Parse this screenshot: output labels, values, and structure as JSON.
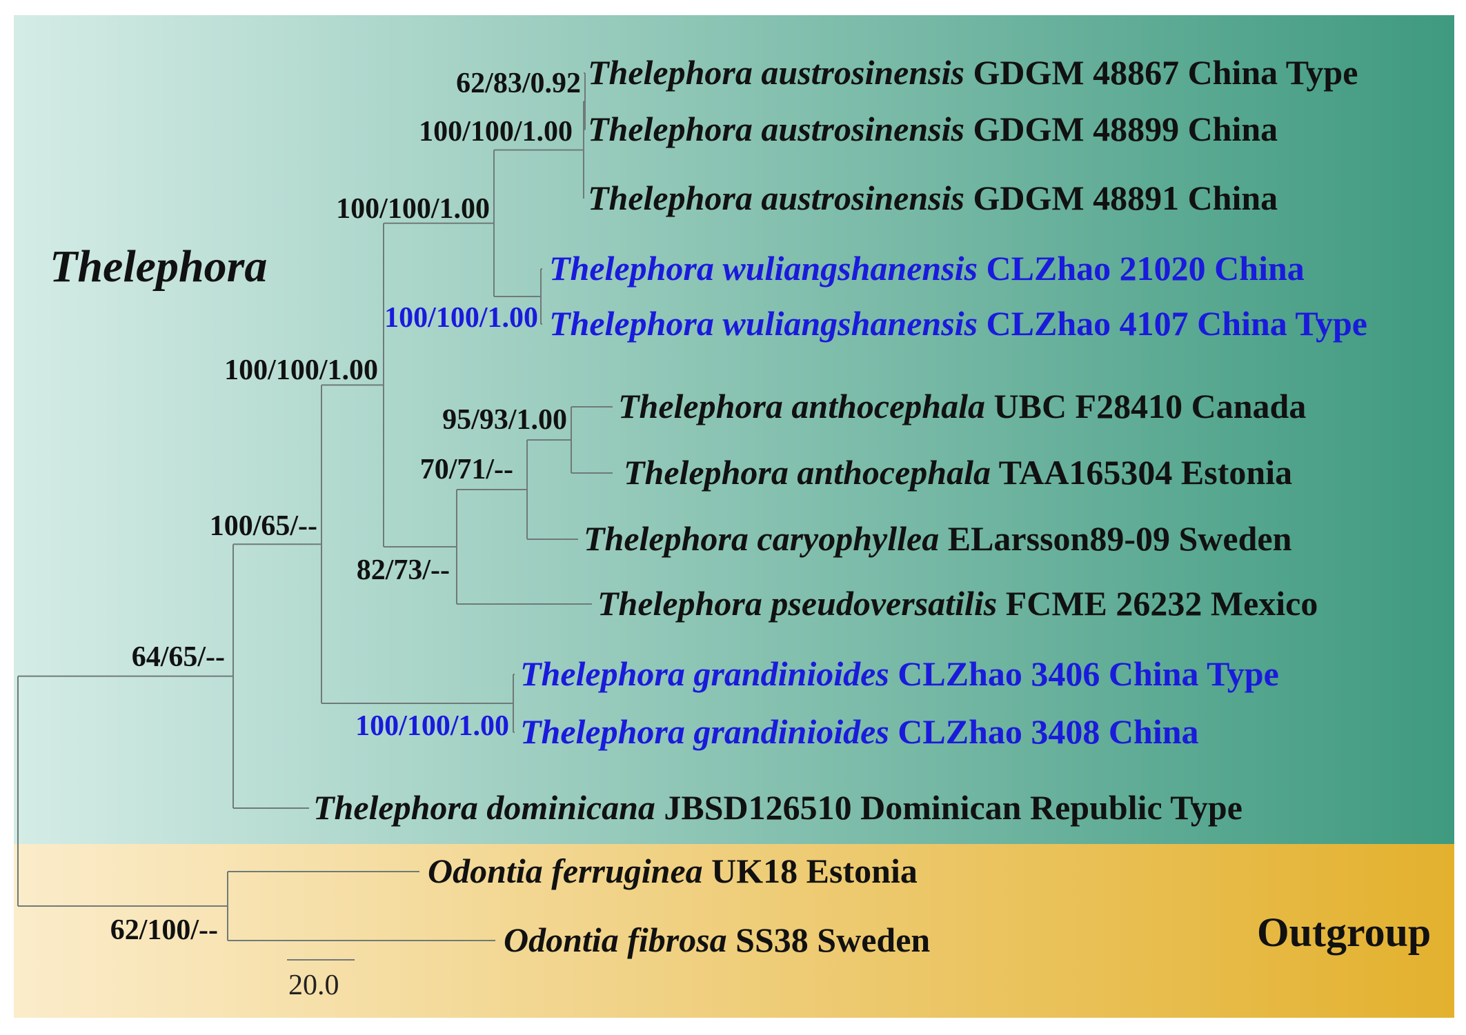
{
  "colors": {
    "ingroup_gradient_start": "#d4ece6",
    "ingroup_gradient_end": "#3f9a7f",
    "outgroup_gradient_start": "#fbecca",
    "outgroup_gradient_end": "#e3b12e",
    "highlight_text": "#1a1adc",
    "normal_text": "#111111"
  },
  "clades": {
    "ingroup_label": "Thelephora",
    "outgroup_label": "Outgroup"
  },
  "taxa": [
    {
      "id": "t1",
      "species": "Thelephora austrosinensis",
      "voucher": "GDGM 48867 China Type",
      "highlight": false
    },
    {
      "id": "t2",
      "species": "Thelephora austrosinensis",
      "voucher": "GDGM 48899 China",
      "highlight": false
    },
    {
      "id": "t3",
      "species": "Thelephora austrosinensis",
      "voucher": "GDGM 48891 China",
      "highlight": false
    },
    {
      "id": "t4",
      "species": "Thelephora wuliangshanensis",
      "voucher": "CLZhao 21020 China",
      "highlight": true
    },
    {
      "id": "t5",
      "species": "Thelephora wuliangshanensis",
      "voucher": "CLZhao 4107 China Type",
      "highlight": true
    },
    {
      "id": "t6",
      "species": "Thelephora anthocephala",
      "voucher": "UBC F28410 Canada",
      "highlight": false
    },
    {
      "id": "t7",
      "species": "Thelephora anthocephala",
      "voucher": "TAA165304 Estonia",
      "highlight": false
    },
    {
      "id": "t8",
      "species": "Thelephora caryophyllea",
      "voucher": "ELarsson89-09 Sweden",
      "highlight": false
    },
    {
      "id": "t9",
      "species": "Thelephora pseudoversatilis",
      "voucher": "FCME 26232 Mexico",
      "highlight": false
    },
    {
      "id": "t10",
      "species": "Thelephora grandinioides",
      "voucher": "CLZhao 3406 China Type",
      "highlight": true
    },
    {
      "id": "t11",
      "species": "Thelephora grandinioides",
      "voucher": "CLZhao 3408 China",
      "highlight": true
    },
    {
      "id": "t12",
      "species": "Thelephora dominicana",
      "voucher": "JBSD126510 Dominican Republic Type",
      "highlight": false
    },
    {
      "id": "t13",
      "species": "Odontia ferruginea",
      "voucher": "UK18 Estonia",
      "highlight": false
    },
    {
      "id": "t14",
      "species": "Odontia fibrosa",
      "voucher": "SS38 Sweden",
      "highlight": false
    }
  ],
  "supports": [
    {
      "node": "austro_a",
      "value": "62/83/0.92",
      "highlight": false
    },
    {
      "node": "austro_b",
      "value": "100/100/1.00",
      "highlight": false
    },
    {
      "node": "austro_wuli",
      "value": "100/100/1.00",
      "highlight": false
    },
    {
      "node": "wuli",
      "value": "100/100/1.00",
      "highlight": true
    },
    {
      "node": "big",
      "value": "100/100/1.00",
      "highlight": false
    },
    {
      "node": "antho",
      "value": "95/93/1.00",
      "highlight": false
    },
    {
      "node": "antho_cary",
      "value": "70/71/--",
      "highlight": false
    },
    {
      "node": "antho_cary_pseudo",
      "value": "82/73/--",
      "highlight": false
    },
    {
      "node": "ingroup_minus_dom",
      "value": "100/65/--",
      "highlight": false
    },
    {
      "node": "grandi",
      "value": "100/100/1.00",
      "highlight": true
    },
    {
      "node": "ingroup",
      "value": "64/65/--",
      "highlight": false
    },
    {
      "node": "outgroup",
      "value": "62/100/--",
      "highlight": false
    }
  ],
  "scale_bar": {
    "label": "20.0"
  }
}
